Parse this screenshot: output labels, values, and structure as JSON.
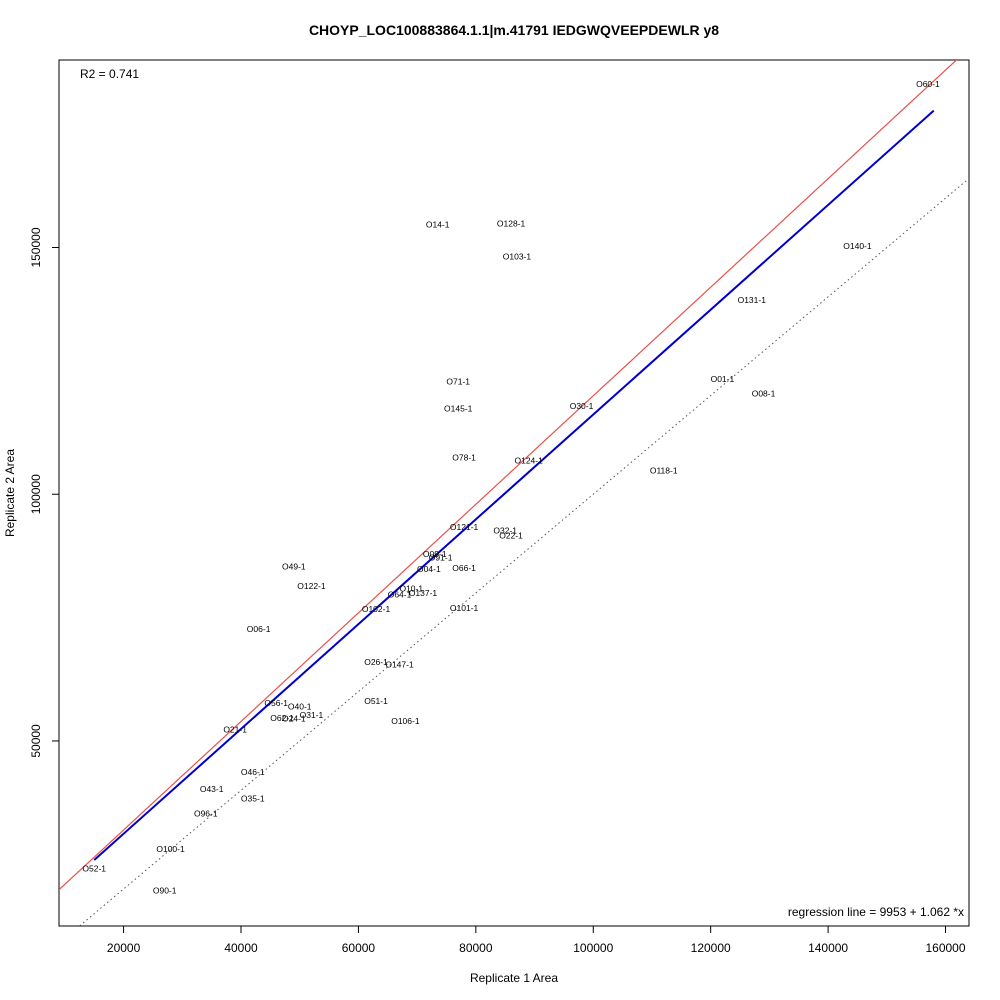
{
  "chart_data": {
    "type": "scatter",
    "title": "CHOYP_LOC100883864.1.1|m.41791 IEDGWQVEEPDEWLR y8",
    "xlabel": "Replicate 1 Area",
    "ylabel": "Replicate 2 Area",
    "xlim": [
      9000,
      164000
    ],
    "ylim": [
      12500,
      188000
    ],
    "x_ticks": [
      20000,
      40000,
      60000,
      80000,
      100000,
      120000,
      140000,
      160000
    ],
    "y_ticks": [
      50000,
      100000,
      150000
    ],
    "x_tick_labels": [
      "20000",
      "40000",
      "60000",
      "80000",
      "100000",
      "120000",
      "140000",
      "160000"
    ],
    "y_tick_labels": [
      "50000",
      "100000",
      "150000"
    ],
    "grid": false,
    "r2_text": "R2 = 0.741",
    "regression_text": "regression line = 9953 + 1.062 *x",
    "regression": {
      "intercept": 9953,
      "slope": 1.062,
      "x_range": [
        15000,
        158000
      ],
      "color": "#0000cd"
    },
    "identity_line": {
      "intercept": 0,
      "slope": 1,
      "color": "#555555",
      "style": "dotted"
    },
    "upper_line": {
      "intercept": 9953,
      "slope": 1.1,
      "color": "#e8504a"
    },
    "points": [
      {
        "label": "O60-1",
        "x": 157000,
        "y": 183000
      },
      {
        "label": "O14-1",
        "x": 73500,
        "y": 154500
      },
      {
        "label": "O128-1",
        "x": 86000,
        "y": 154700
      },
      {
        "label": "O103-1",
        "x": 87000,
        "y": 148000
      },
      {
        "label": "O140-1",
        "x": 145000,
        "y": 150200
      },
      {
        "label": "O131-1",
        "x": 127000,
        "y": 139200
      },
      {
        "label": "O01-1",
        "x": 122000,
        "y": 123200
      },
      {
        "label": "O08-1",
        "x": 129000,
        "y": 120300
      },
      {
        "label": "O71-1",
        "x": 77000,
        "y": 122700
      },
      {
        "label": "O145-1",
        "x": 77000,
        "y": 117200
      },
      {
        "label": "O30-1",
        "x": 98000,
        "y": 117700
      },
      {
        "label": "O78-1",
        "x": 78000,
        "y": 107300
      },
      {
        "label": "O124-1",
        "x": 89000,
        "y": 106700
      },
      {
        "label": "O118-1",
        "x": 112000,
        "y": 104700
      },
      {
        "label": "O121-1",
        "x": 78000,
        "y": 93200
      },
      {
        "label": "O32-1",
        "x": 85000,
        "y": 92500
      },
      {
        "label": "O22-1",
        "x": 86000,
        "y": 91500
      },
      {
        "label": "O09-1",
        "x": 73000,
        "y": 87700
      },
      {
        "label": "O91-1",
        "x": 74000,
        "y": 87000
      },
      {
        "label": "O04-1",
        "x": 72000,
        "y": 84700
      },
      {
        "label": "O66-1",
        "x": 78000,
        "y": 84900
      },
      {
        "label": "O49-1",
        "x": 49000,
        "y": 85200
      },
      {
        "label": "O122-1",
        "x": 52000,
        "y": 81300
      },
      {
        "label": "O10-1",
        "x": 69000,
        "y": 80700
      },
      {
        "label": "O64-1",
        "x": 67000,
        "y": 79500
      },
      {
        "label": "O137-1",
        "x": 71000,
        "y": 79800
      },
      {
        "label": "O102-1",
        "x": 63000,
        "y": 76600
      },
      {
        "label": "O101-1",
        "x": 78000,
        "y": 76800
      },
      {
        "label": "O06-1",
        "x": 43000,
        "y": 72500
      },
      {
        "label": "O26-1",
        "x": 63000,
        "y": 65800
      },
      {
        "label": "O147-1",
        "x": 67000,
        "y": 65300
      },
      {
        "label": "O56-1",
        "x": 46000,
        "y": 57500
      },
      {
        "label": "O40-1",
        "x": 50000,
        "y": 56800
      },
      {
        "label": "O51-1",
        "x": 63000,
        "y": 57900
      },
      {
        "label": "O31-1",
        "x": 52000,
        "y": 55100
      },
      {
        "label": "O62-1",
        "x": 47000,
        "y": 54500
      },
      {
        "label": "O24-1",
        "x": 49000,
        "y": 54400
      },
      {
        "label": "O106-1",
        "x": 68000,
        "y": 53900
      },
      {
        "label": "O21-1",
        "x": 39000,
        "y": 52200
      },
      {
        "label": "O46-1",
        "x": 42000,
        "y": 43600
      },
      {
        "label": "O43-1",
        "x": 35000,
        "y": 40100
      },
      {
        "label": "O35-1",
        "x": 42000,
        "y": 38200
      },
      {
        "label": "O96-1",
        "x": 34000,
        "y": 35100
      },
      {
        "label": "O100-1",
        "x": 28000,
        "y": 28000
      },
      {
        "label": "O52-1",
        "x": 15000,
        "y": 24000
      },
      {
        "label": "O90-1",
        "x": 27000,
        "y": 19500
      }
    ]
  }
}
